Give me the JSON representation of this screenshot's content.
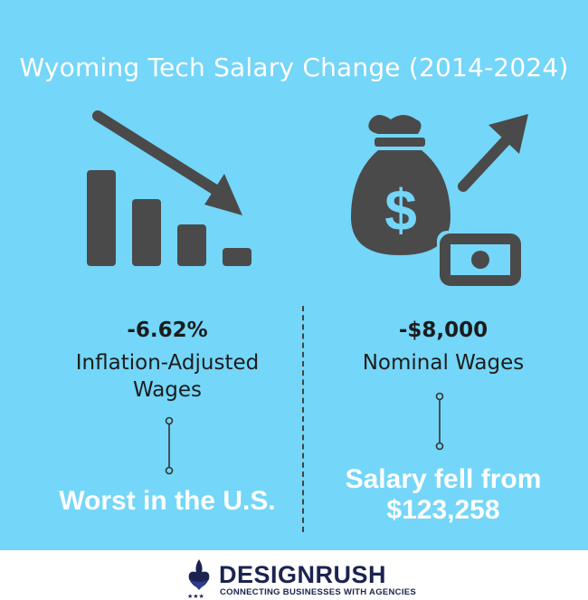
{
  "title": "Wyoming Tech Salary Change (2014-2024)",
  "left": {
    "icon": "declining-bar-chart-icon",
    "stat": "-6.62%",
    "label_line1": "Inflation-Adjusted",
    "label_line2": "Wages",
    "callout": "Worst in the U.S."
  },
  "right": {
    "icon": "money-bag-rising-icon",
    "stat": "-$8,000",
    "label": "Nominal Wages",
    "callout_line1": "Salary fell from",
    "callout_line2": "$123,258"
  },
  "footer": {
    "brand": "DESIGNRUSH",
    "tagline": "CONNECTING BUSINESSES WITH AGENCIES",
    "logo_icon": "designrush-logo-icon"
  },
  "colors": {
    "background": "#74d6f8",
    "icon": "#4a4a4a",
    "brand": "#1b2350"
  }
}
